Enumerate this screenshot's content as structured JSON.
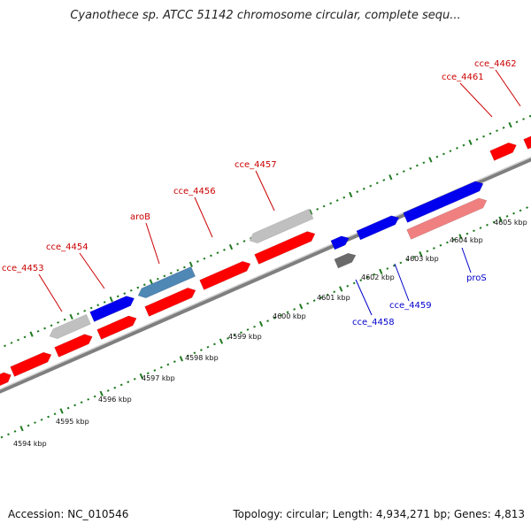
{
  "title": "Cyanothece sp. ATCC 51142 chromosome circular, complete sequ...",
  "footer": {
    "accession": "Accession: NC_010546",
    "summary": "Topology: circular; Length: 4,934,271 bp; Genes: 4,813"
  },
  "colors": {
    "backbone": "#8c8c8c",
    "tick": "#1f7a1f",
    "label_red": "#cc0000",
    "label_blue": "#0000cc",
    "gene_red": "#ff0000",
    "gene_blue": "#0000ee",
    "gene_gray": "#c0c0c0",
    "gene_steel": "#4f87b5",
    "gene_pink": "#f08080",
    "gene_dark": "#6a6a6a"
  },
  "position_labels": [
    "4594 kbp",
    "4595 kbp",
    "4596 kbp",
    "4597 kbp",
    "4598 kbp",
    "4599 kbp",
    "4600 kbp",
    "4601 kbp",
    "4602 kbp",
    "4603 kbp",
    "4604 kbp",
    "4605 kbp"
  ],
  "upper_gene_labels": [
    "cce_4453",
    "cce_4454",
    "aroB",
    "cce_4456",
    "cce_4457",
    "cce_4461",
    "cce_4462"
  ],
  "lower_gene_labels": [
    "cce_4458",
    "cce_4459",
    "proS"
  ]
}
